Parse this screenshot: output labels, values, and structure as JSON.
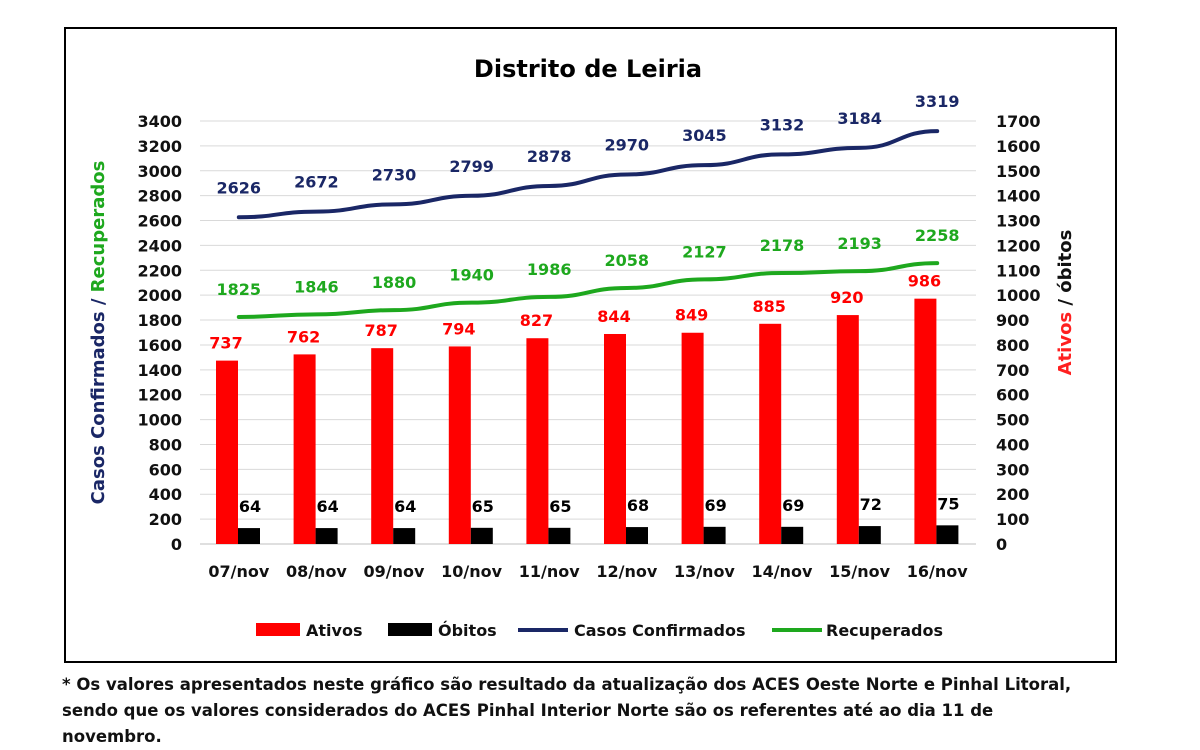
{
  "chart_data": {
    "type": "bar",
    "title": "Distrito de Leiria",
    "categories": [
      "07/nov",
      "08/nov",
      "09/nov",
      "10/nov",
      "11/nov",
      "12/nov",
      "13/nov",
      "14/nov",
      "15/nov",
      "16/nov"
    ],
    "left_axis": {
      "label_part1": "Casos Confirmados",
      "label_sep": " / ",
      "label_part2": "Recuperados",
      "ylim": [
        0,
        3400
      ],
      "ticks": [
        "0",
        "200",
        "400",
        "600",
        "800",
        "1000",
        "1200",
        "1400",
        "1600",
        "1800",
        "2000",
        "2200",
        "2400",
        "2600",
        "2800",
        "3000",
        "3200",
        "3400"
      ]
    },
    "right_axis": {
      "label_part1": "Ativos",
      "label_sep": " / ",
      "label_part2": "óbitos",
      "ylim": [
        0,
        1700
      ],
      "ticks": [
        "0",
        "100",
        "200",
        "300",
        "400",
        "500",
        "600",
        "700",
        "800",
        "900",
        "1000",
        "1100",
        "1200",
        "1300",
        "1400",
        "1500",
        "1600",
        "1700"
      ]
    },
    "series": [
      {
        "name": "Ativos",
        "type": "bar",
        "axis": "right",
        "color": "#ff0000",
        "label_color": "#ff0000",
        "values": [
          737,
          762,
          787,
          794,
          827,
          844,
          849,
          885,
          920,
          986
        ]
      },
      {
        "name": "Óbitos",
        "type": "bar",
        "axis": "right",
        "color": "#000000",
        "label_color": "#000000",
        "values": [
          64,
          64,
          64,
          65,
          65,
          68,
          69,
          69,
          72,
          75
        ]
      },
      {
        "name": "Casos Confirmados",
        "type": "line",
        "axis": "left",
        "color": "#1a2766",
        "label_color": "#1a2766",
        "values": [
          2626,
          2672,
          2730,
          2799,
          2878,
          2970,
          3045,
          3132,
          3184,
          3319
        ]
      },
      {
        "name": "Recuperados",
        "type": "line",
        "axis": "left",
        "color": "#1ea81e",
        "label_color": "#1ea81e",
        "values": [
          1825,
          1846,
          1880,
          1940,
          1986,
          2058,
          2127,
          2178,
          2193,
          2258
        ]
      }
    ],
    "legend_position": "bottom",
    "grid": true
  },
  "footnote": {
    "line1": "* Os valores apresentados neste gráfico são resultado da atualização dos ACES Oeste Norte e Pinhal Litoral,",
    "line2": "sendo que os valores considerados do ACES Pinhal Interior Norte são os referentes até ao dia 11 de",
    "line3": "novembro."
  }
}
